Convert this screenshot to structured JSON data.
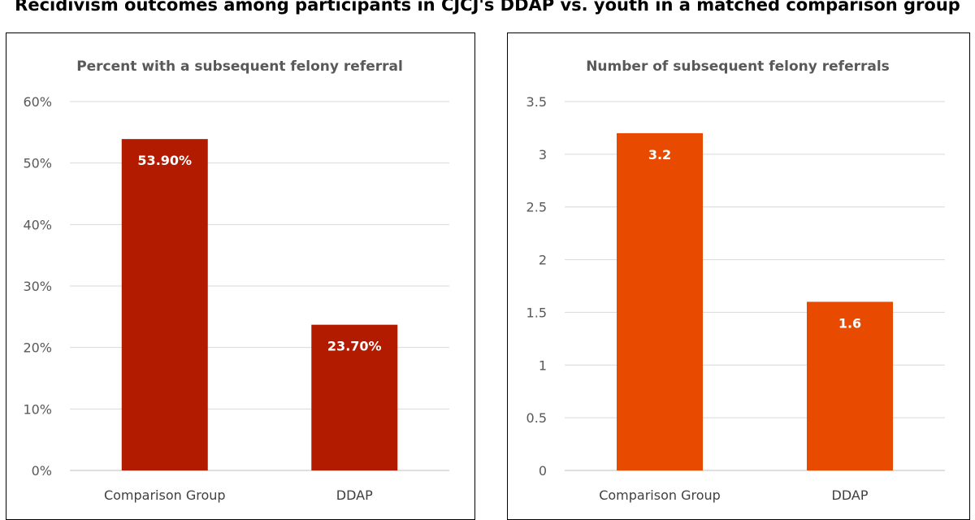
{
  "page": {
    "title": "Recidivism outcomes among participants in CJCJ's DDAP vs. youth in a matched comparison group"
  },
  "chart_data": [
    {
      "type": "bar",
      "title": "Percent with a subsequent felony referral",
      "xlabel": "",
      "ylabel": "",
      "categories": [
        "Comparison Group",
        "DDAP"
      ],
      "values": [
        53.9,
        23.7
      ],
      "data_labels": [
        "53.90%",
        "23.70%"
      ],
      "ylim": [
        0,
        60
      ],
      "yticks": [
        0,
        10,
        20,
        30,
        40,
        50,
        60
      ],
      "ytick_labels": [
        "0%",
        "10%",
        "20%",
        "30%",
        "40%",
        "50%",
        "60%"
      ],
      "bar_color": "#b31b00",
      "grid": true,
      "legend": "none"
    },
    {
      "type": "bar",
      "title": "Number of subsequent felony referrals",
      "xlabel": "",
      "ylabel": "",
      "categories": [
        "Comparison Group",
        "DDAP"
      ],
      "values": [
        3.2,
        1.6
      ],
      "data_labels": [
        "3.2",
        "1.6"
      ],
      "ylim": [
        0,
        3.5
      ],
      "yticks": [
        0,
        0.5,
        1,
        1.5,
        2,
        2.5,
        3,
        3.5
      ],
      "ytick_labels": [
        "0",
        "0.5",
        "1",
        "1.5",
        "2",
        "2.5",
        "3",
        "3.5"
      ],
      "bar_color": "#e84a00",
      "grid": true,
      "legend": "none"
    }
  ]
}
